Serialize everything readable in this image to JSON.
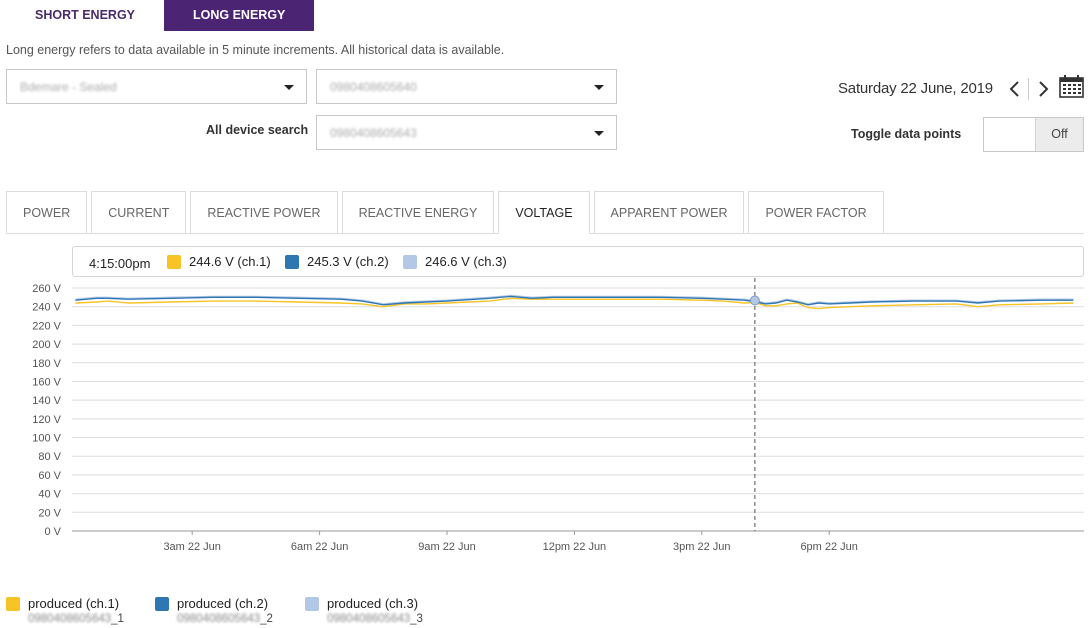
{
  "top_tabs": {
    "short": "SHORT ENERGY",
    "long": "LONG ENERGY"
  },
  "description": "Long energy refers to data available in 5 minute increments. All historical data is available.",
  "selects": {
    "site": "Bdemare - Sealed",
    "device": "0980408605640",
    "all_device": "0980408605643"
  },
  "labels": {
    "all_device_search": "All device search",
    "toggle_data_points": "Toggle data points"
  },
  "date": "Saturday 22 June, 2019",
  "toggle": {
    "value": "Off"
  },
  "view_tabs": [
    "POWER",
    "CURRENT",
    "REACTIVE POWER",
    "REACTIVE ENERGY",
    "VOLTAGE",
    "APPARENT POWER",
    "POWER FACTOR"
  ],
  "active_tab": "VOLTAGE",
  "tooltip": {
    "time": "4:15:00pm",
    "items": [
      {
        "text": "244.6 V (ch.1)",
        "color": "#f7c325"
      },
      {
        "text": "245.3 V (ch.2)",
        "color": "#2f77b3"
      },
      {
        "text": "246.6 V (ch.3)",
        "color": "#b3c8e6"
      }
    ]
  },
  "legend": [
    {
      "label": "produced (ch.1)",
      "device": "0980408605643",
      "suffix": "_1",
      "color": "#f7c325"
    },
    {
      "label": "produced (ch.2)",
      "device": "0980408605643",
      "suffix": "_2",
      "color": "#2f77b3"
    },
    {
      "label": "produced (ch.3)",
      "device": "0980408605643",
      "suffix": "_3",
      "color": "#b3c8e6"
    }
  ],
  "chart_data": {
    "type": "line",
    "x_unit": "hours since midnight 22 Jun",
    "y_ticks": [
      0,
      20,
      40,
      60,
      80,
      100,
      120,
      140,
      160,
      180,
      200,
      220,
      240,
      260
    ],
    "y_tick_labels": [
      "0 V",
      "20 V",
      "40 V",
      "60 V",
      "80 V",
      "100 V",
      "120 V",
      "140 V",
      "160 V",
      "180 V",
      "200 V",
      "220 V",
      "240 V",
      "260 V"
    ],
    "ylim": [
      0,
      260
    ],
    "x_ticks": [
      3,
      6,
      9,
      12,
      15,
      18
    ],
    "x_tick_labels": [
      "3am 22 Jun",
      "6am 22 Jun",
      "9am 22 Jun",
      "12pm 22 Jun",
      "3pm 22 Jun",
      "6pm 22 Jun"
    ],
    "xlim": [
      0.17,
      24.0
    ],
    "crosshair_x": 16.25,
    "x": [
      0.25,
      0.75,
      1.0,
      1.5,
      2.5,
      3.5,
      4.5,
      5.5,
      6.5,
      7.0,
      7.5,
      8.0,
      8.5,
      9.0,
      10.0,
      10.5,
      11.0,
      11.5,
      12.0,
      13.0,
      14.0,
      15.0,
      15.5,
      16.0,
      16.25,
      16.5,
      16.75,
      17.0,
      17.25,
      17.5,
      17.75,
      18.0,
      18.5,
      19.0,
      20.0,
      21.0,
      21.5,
      22.0,
      23.0,
      23.75
    ],
    "series": [
      {
        "name": "produced (ch.1)",
        "color": "#f7c325",
        "values": [
          244,
          245,
          246,
          244,
          245,
          246,
          246,
          245,
          244,
          243,
          240,
          243,
          243,
          244,
          246,
          249,
          248,
          248,
          248,
          248,
          248,
          247,
          246,
          244,
          244.6,
          241,
          241,
          243,
          244,
          239,
          238,
          239,
          240,
          241,
          242,
          243,
          240,
          242,
          243,
          244
        ]
      },
      {
        "name": "produced (ch.2)",
        "color": "#2f77b3",
        "values": [
          247,
          249,
          249,
          248,
          249,
          250,
          250,
          249,
          248,
          246,
          242,
          244,
          245,
          246,
          249,
          251,
          249,
          250,
          250,
          250,
          250,
          249,
          248,
          247,
          245.3,
          243,
          244,
          247,
          245,
          242,
          244,
          243,
          244,
          245,
          246,
          246,
          244,
          246,
          247,
          247
        ]
      },
      {
        "name": "produced (ch.3)",
        "color": "#b3c8e6",
        "values": [
          248,
          250,
          250,
          249,
          250,
          251,
          251,
          250,
          249,
          247,
          243,
          245,
          246,
          247,
          250,
          252,
          250,
          251,
          251,
          251,
          251,
          250,
          249,
          248,
          246.6,
          244,
          245,
          248,
          246,
          243,
          245,
          244,
          245,
          246,
          247,
          247,
          245,
          247,
          248,
          248
        ]
      }
    ]
  }
}
